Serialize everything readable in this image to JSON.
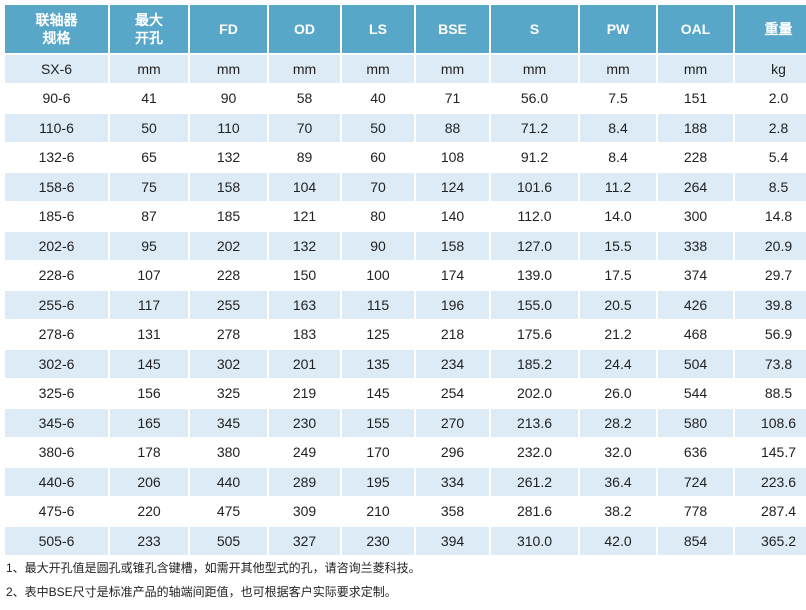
{
  "table": {
    "header": [
      "联轴器\n规格",
      "最大\n开孔",
      "FD",
      "OD",
      "LS",
      "BSE",
      "S",
      "PW",
      "OAL",
      "重量"
    ],
    "units": [
      "SX-6",
      "mm",
      "mm",
      "mm",
      "mm",
      "mm",
      "mm",
      "mm",
      "mm",
      "kg"
    ],
    "rows": [
      [
        "90-6",
        "41",
        "90",
        "58",
        "40",
        "71",
        "56.0",
        "7.5",
        "151",
        "2.0"
      ],
      [
        "110-6",
        "50",
        "110",
        "70",
        "50",
        "88",
        "71.2",
        "8.4",
        "188",
        "2.8"
      ],
      [
        "132-6",
        "65",
        "132",
        "89",
        "60",
        "108",
        "91.2",
        "8.4",
        "228",
        "5.4"
      ],
      [
        "158-6",
        "75",
        "158",
        "104",
        "70",
        "124",
        "101.6",
        "11.2",
        "264",
        "8.5"
      ],
      [
        "185-6",
        "87",
        "185",
        "121",
        "80",
        "140",
        "112.0",
        "14.0",
        "300",
        "14.8"
      ],
      [
        "202-6",
        "95",
        "202",
        "132",
        "90",
        "158",
        "127.0",
        "15.5",
        "338",
        "20.9"
      ],
      [
        "228-6",
        "107",
        "228",
        "150",
        "100",
        "174",
        "139.0",
        "17.5",
        "374",
        "29.7"
      ],
      [
        "255-6",
        "117",
        "255",
        "163",
        "115",
        "196",
        "155.0",
        "20.5",
        "426",
        "39.8"
      ],
      [
        "278-6",
        "131",
        "278",
        "183",
        "125",
        "218",
        "175.6",
        "21.2",
        "468",
        "56.9"
      ],
      [
        "302-6",
        "145",
        "302",
        "201",
        "135",
        "234",
        "185.2",
        "24.4",
        "504",
        "73.8"
      ],
      [
        "325-6",
        "156",
        "325",
        "219",
        "145",
        "254",
        "202.0",
        "26.0",
        "544",
        "88.5"
      ],
      [
        "345-6",
        "165",
        "345",
        "230",
        "155",
        "270",
        "213.6",
        "28.2",
        "580",
        "108.6"
      ],
      [
        "380-6",
        "178",
        "380",
        "249",
        "170",
        "296",
        "232.0",
        "32.0",
        "636",
        "145.7"
      ],
      [
        "440-6",
        "206",
        "440",
        "289",
        "195",
        "334",
        "261.2",
        "36.4",
        "724",
        "223.6"
      ],
      [
        "475-6",
        "220",
        "475",
        "309",
        "210",
        "358",
        "281.6",
        "38.2",
        "778",
        "287.4"
      ],
      [
        "505-6",
        "233",
        "505",
        "327",
        "230",
        "394",
        "310.0",
        "42.0",
        "854",
        "365.2"
      ]
    ]
  },
  "notes": [
    "1、最大开孔值是圆孔或锥孔含键槽，如需开其他型式的孔，请咨询兰菱科技。",
    "2、表中BSE尺寸是标准产品的轴端间距值，也可根据客户实际要求定制。"
  ]
}
